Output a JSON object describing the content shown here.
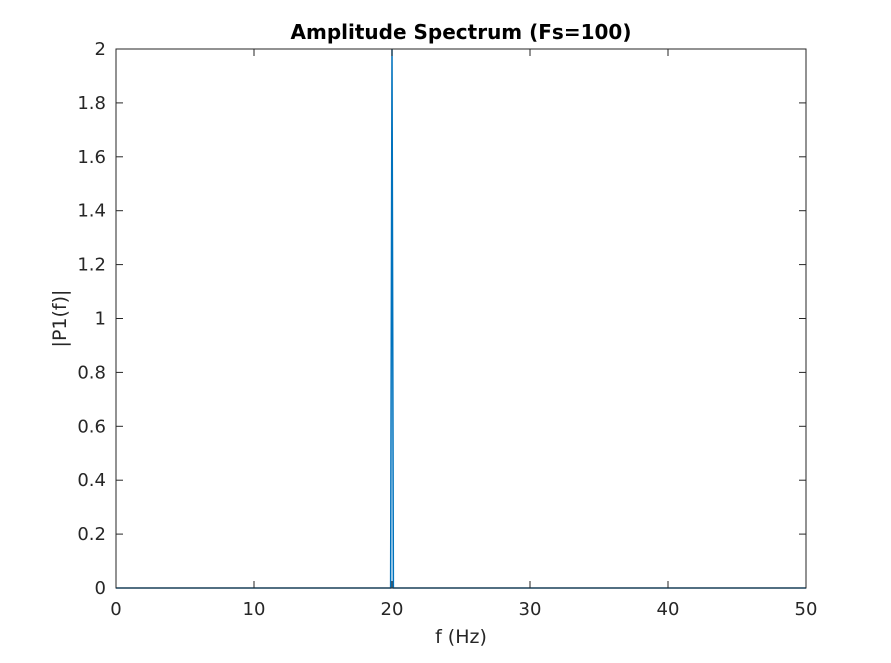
{
  "chart_data": {
    "type": "line",
    "title": "Amplitude Spectrum (Fs=100)",
    "xlabel": "f (Hz)",
    "ylabel": "|P1(f)|",
    "xlim": [
      0,
      50
    ],
    "ylim": [
      0,
      2
    ],
    "xticks": [
      0,
      10,
      20,
      30,
      40,
      50
    ],
    "yticks": [
      0,
      0.2,
      0.4,
      0.6,
      0.8,
      1,
      1.2,
      1.4,
      1.6,
      1.8,
      2
    ],
    "xtick_labels": [
      "0",
      "10",
      "20",
      "30",
      "40",
      "50"
    ],
    "ytick_labels": [
      "0",
      "0.2",
      "0.4",
      "0.6",
      "0.8",
      "1",
      "1.2",
      "1.4",
      "1.6",
      "1.8",
      "2"
    ],
    "grid": false,
    "box": true,
    "series": [
      {
        "color": "#0072bd",
        "x": [
          0,
          19.9,
          20,
          20.1,
          50
        ],
        "y": [
          0,
          0,
          2,
          0,
          0
        ]
      }
    ]
  }
}
